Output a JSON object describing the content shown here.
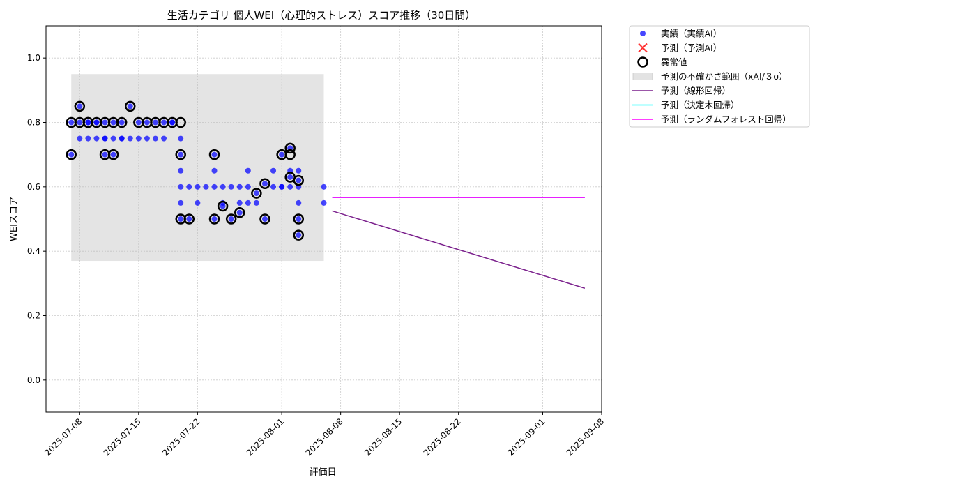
{
  "chart_data": {
    "type": "scatter",
    "title": "生活カテゴリ 個人WEI（心理的ストレス）スコア推移（30日間）",
    "xlabel": "評価日",
    "ylabel": "WEIスコア",
    "xlim": [
      "2025-07-04",
      "2025-09-08"
    ],
    "ylim": [
      -0.1,
      1.1
    ],
    "yticks": [
      0.0,
      0.2,
      0.4,
      0.6,
      0.8,
      1.0
    ],
    "ytick_labels": [
      "0.0",
      "0.2",
      "0.4",
      "0.6",
      "0.8",
      "1.0"
    ],
    "xticks": [
      "2025-07-08",
      "2025-07-15",
      "2025-07-22",
      "2025-08-01",
      "2025-08-08",
      "2025-08-15",
      "2025-08-22",
      "2025-09-01",
      "2025-09-08"
    ],
    "grid": true,
    "legend_position": "outside-top-right",
    "uncertainty_band": {
      "x_start": "2025-07-07",
      "x_end": "2025-08-06",
      "y_low": 0.37,
      "y_high": 0.95,
      "color": "#bbbbbb"
    },
    "series": [
      {
        "name": "実績（実績AI）",
        "kind": "scatter",
        "color": "#0000ff",
        "points": [
          [
            "2025-07-07",
            0.7
          ],
          [
            "2025-07-07",
            0.8
          ],
          [
            "2025-07-08",
            0.75
          ],
          [
            "2025-07-08",
            0.8
          ],
          [
            "2025-07-08",
            0.85
          ],
          [
            "2025-07-09",
            0.75
          ],
          [
            "2025-07-09",
            0.8
          ],
          [
            "2025-07-09",
            0.8
          ],
          [
            "2025-07-10",
            0.75
          ],
          [
            "2025-07-10",
            0.8
          ],
          [
            "2025-07-10",
            0.8
          ],
          [
            "2025-07-11",
            0.75
          ],
          [
            "2025-07-11",
            0.75
          ],
          [
            "2025-07-11",
            0.8
          ],
          [
            "2025-07-11",
            0.7
          ],
          [
            "2025-07-12",
            0.75
          ],
          [
            "2025-07-12",
            0.7
          ],
          [
            "2025-07-12",
            0.8
          ],
          [
            "2025-07-13",
            0.75
          ],
          [
            "2025-07-13",
            0.8
          ],
          [
            "2025-07-13",
            0.75
          ],
          [
            "2025-07-14",
            0.85
          ],
          [
            "2025-07-14",
            0.75
          ],
          [
            "2025-07-15",
            0.75
          ],
          [
            "2025-07-15",
            0.8
          ],
          [
            "2025-07-16",
            0.75
          ],
          [
            "2025-07-16",
            0.8
          ],
          [
            "2025-07-17",
            0.75
          ],
          [
            "2025-07-17",
            0.8
          ],
          [
            "2025-07-18",
            0.75
          ],
          [
            "2025-07-18",
            0.8
          ],
          [
            "2025-07-19",
            0.8
          ],
          [
            "2025-07-19",
            0.8
          ],
          [
            "2025-07-20",
            0.75
          ],
          [
            "2025-07-20",
            0.7
          ],
          [
            "2025-07-20",
            0.65
          ],
          [
            "2025-07-20",
            0.6
          ],
          [
            "2025-07-20",
            0.5
          ],
          [
            "2025-07-20",
            0.55
          ],
          [
            "2025-07-21",
            0.6
          ],
          [
            "2025-07-21",
            0.5
          ],
          [
            "2025-07-22",
            0.55
          ],
          [
            "2025-07-22",
            0.6
          ],
          [
            "2025-07-23",
            0.6
          ],
          [
            "2025-07-24",
            0.6
          ],
          [
            "2025-07-24",
            0.65
          ],
          [
            "2025-07-24",
            0.7
          ],
          [
            "2025-07-24",
            0.5
          ],
          [
            "2025-07-25",
            0.6
          ],
          [
            "2025-07-25",
            0.55
          ],
          [
            "2025-07-25",
            0.54
          ],
          [
            "2025-07-26",
            0.6
          ],
          [
            "2025-07-26",
            0.5
          ],
          [
            "2025-07-27",
            0.6
          ],
          [
            "2025-07-27",
            0.55
          ],
          [
            "2025-07-27",
            0.52
          ],
          [
            "2025-07-28",
            0.55
          ],
          [
            "2025-07-28",
            0.6
          ],
          [
            "2025-07-28",
            0.65
          ],
          [
            "2025-07-29",
            0.58
          ],
          [
            "2025-07-29",
            0.55
          ],
          [
            "2025-07-30",
            0.5
          ],
          [
            "2025-07-30",
            0.61
          ],
          [
            "2025-07-31",
            0.6
          ],
          [
            "2025-07-31",
            0.65
          ],
          [
            "2025-08-01",
            0.6
          ],
          [
            "2025-08-01",
            0.7
          ],
          [
            "2025-08-01",
            0.6
          ],
          [
            "2025-08-02",
            0.65
          ],
          [
            "2025-08-02",
            0.6
          ],
          [
            "2025-08-02",
            0.72
          ],
          [
            "2025-08-02",
            0.63
          ],
          [
            "2025-08-03",
            0.6
          ],
          [
            "2025-08-03",
            0.55
          ],
          [
            "2025-08-03",
            0.5
          ],
          [
            "2025-08-03",
            0.45
          ],
          [
            "2025-08-03",
            0.62
          ],
          [
            "2025-08-03",
            0.65
          ],
          [
            "2025-08-06",
            0.6
          ],
          [
            "2025-08-06",
            0.55
          ]
        ]
      },
      {
        "name": "予測（予測AI）",
        "kind": "scatter-x",
        "color": "#ff3333",
        "points": []
      },
      {
        "name": "異常値",
        "kind": "ring",
        "color": "#000000",
        "points": [
          [
            "2025-07-07",
            0.7
          ],
          [
            "2025-07-07",
            0.8
          ],
          [
            "2025-07-08",
            0.8
          ],
          [
            "2025-07-08",
            0.85
          ],
          [
            "2025-07-09",
            0.8
          ],
          [
            "2025-07-09",
            0.8
          ],
          [
            "2025-07-10",
            0.8
          ],
          [
            "2025-07-11",
            0.8
          ],
          [
            "2025-07-11",
            0.7
          ],
          [
            "2025-07-12",
            0.7
          ],
          [
            "2025-07-12",
            0.8
          ],
          [
            "2025-07-13",
            0.8
          ],
          [
            "2025-07-14",
            0.85
          ],
          [
            "2025-07-15",
            0.8
          ],
          [
            "2025-07-16",
            0.8
          ],
          [
            "2025-07-17",
            0.8
          ],
          [
            "2025-07-18",
            0.8
          ],
          [
            "2025-07-19",
            0.8
          ],
          [
            "2025-07-20",
            0.8
          ],
          [
            "2025-07-20",
            0.7
          ],
          [
            "2025-07-20",
            0.5
          ],
          [
            "2025-07-21",
            0.5
          ],
          [
            "2025-07-24",
            0.7
          ],
          [
            "2025-07-24",
            0.5
          ],
          [
            "2025-07-25",
            0.54
          ],
          [
            "2025-07-26",
            0.5
          ],
          [
            "2025-07-27",
            0.52
          ],
          [
            "2025-07-29",
            0.58
          ],
          [
            "2025-07-30",
            0.5
          ],
          [
            "2025-07-30",
            0.61
          ],
          [
            "2025-08-01",
            0.7
          ],
          [
            "2025-08-02",
            0.72
          ],
          [
            "2025-08-02",
            0.7
          ],
          [
            "2025-08-02",
            0.63
          ],
          [
            "2025-08-03",
            0.62
          ],
          [
            "2025-08-03",
            0.5
          ],
          [
            "2025-08-03",
            0.45
          ]
        ]
      },
      {
        "name": "予測の不確かさ範囲（xAI/３σ）",
        "kind": "band",
        "color": "#cccccc"
      },
      {
        "name": "予測（線形回帰）",
        "kind": "line",
        "color": "#7a1f8c",
        "points": [
          [
            "2025-08-07",
            0.525
          ],
          [
            "2025-09-06",
            0.285
          ]
        ]
      },
      {
        "name": "予測（決定木回帰）",
        "kind": "line",
        "color": "#00ffff",
        "points": [
          [
            "2025-08-07",
            0.567
          ],
          [
            "2025-09-06",
            0.567
          ]
        ]
      },
      {
        "name": "予測（ランダムフォレスト回帰）",
        "kind": "line",
        "color": "#ff00ff",
        "points": [
          [
            "2025-08-07",
            0.567
          ],
          [
            "2025-09-06",
            0.567
          ]
        ]
      }
    ]
  }
}
